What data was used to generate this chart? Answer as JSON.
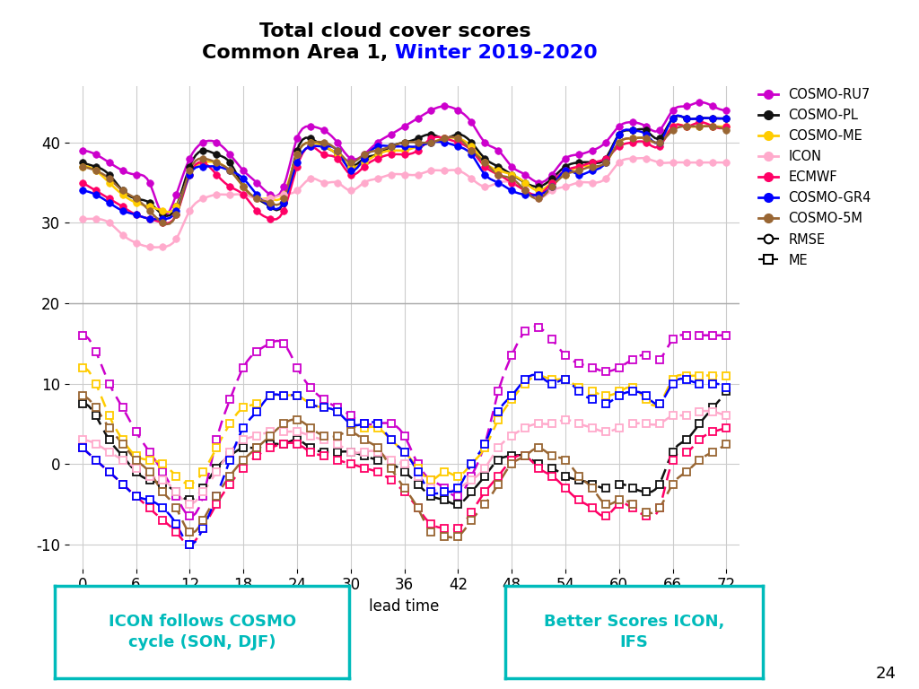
{
  "title_line1": "Total cloud cover scores",
  "title_line2_black": "Common Area 1, ",
  "title_line2_blue": "Winter 2019-2020",
  "xlabel": "lead time",
  "x_ticks": [
    0,
    6,
    12,
    18,
    24,
    30,
    36,
    42,
    48,
    54,
    60,
    66,
    72
  ],
  "background_color": "#ffffff",
  "colors": {
    "COSMO-RU7": "#cc00cc",
    "COSMO-PL": "#111111",
    "COSMO-ME": "#ffcc00",
    "ICON": "#ffaacc",
    "ECMWF": "#ff0066",
    "COSMO-GR4": "#0000ff",
    "COSMO-5M": "#996633"
  },
  "rmse": {
    "COSMO-RU7": [
      39.0,
      38.5,
      37.5,
      36.5,
      36.0,
      35.0,
      31.0,
      33.5,
      38.0,
      40.0,
      40.0,
      38.5,
      36.5,
      35.0,
      33.5,
      34.5,
      40.5,
      42.0,
      41.5,
      40.0,
      38.0,
      38.5,
      40.0,
      41.0,
      42.0,
      43.0,
      44.0,
      44.5,
      44.0,
      42.5,
      40.0,
      39.0,
      37.0,
      36.0,
      35.0,
      36.0,
      38.0,
      38.5,
      39.0,
      40.0,
      42.0,
      42.5,
      42.0,
      41.5,
      44.0,
      44.5,
      45.0,
      44.5,
      44.0
    ],
    "COSMO-PL": [
      37.5,
      37.0,
      36.0,
      34.0,
      33.0,
      32.5,
      31.0,
      32.0,
      37.0,
      39.0,
      38.5,
      37.5,
      34.5,
      33.0,
      32.0,
      32.5,
      39.0,
      40.5,
      39.5,
      38.5,
      37.0,
      38.0,
      38.5,
      39.5,
      40.0,
      40.5,
      41.0,
      40.5,
      41.0,
      40.0,
      38.0,
      37.0,
      36.0,
      35.0,
      34.5,
      35.5,
      37.0,
      37.5,
      37.5,
      38.0,
      41.0,
      41.5,
      41.5,
      40.5,
      43.0,
      43.0,
      43.0,
      43.0,
      43.0
    ],
    "COSMO-ME": [
      37.0,
      36.5,
      35.0,
      33.5,
      32.5,
      32.0,
      31.5,
      32.0,
      36.0,
      37.5,
      37.5,
      36.5,
      34.5,
      33.0,
      33.0,
      33.5,
      38.5,
      40.0,
      39.5,
      38.5,
      37.0,
      37.5,
      38.5,
      39.0,
      39.0,
      39.5,
      40.0,
      40.5,
      40.5,
      39.5,
      37.5,
      36.5,
      36.0,
      35.0,
      34.0,
      35.0,
      36.0,
      37.0,
      37.0,
      37.5,
      40.0,
      40.5,
      40.5,
      40.0,
      42.0,
      42.0,
      42.0,
      42.0,
      42.0
    ],
    "ICON": [
      30.5,
      30.5,
      30.0,
      28.5,
      27.5,
      27.0,
      27.0,
      28.0,
      31.5,
      33.0,
      33.5,
      33.5,
      33.5,
      33.0,
      33.0,
      33.5,
      34.0,
      35.5,
      35.0,
      35.0,
      34.0,
      35.0,
      35.5,
      36.0,
      36.0,
      36.0,
      36.5,
      36.5,
      36.5,
      35.5,
      34.5,
      35.0,
      35.0,
      34.0,
      33.0,
      34.0,
      34.5,
      35.0,
      35.0,
      35.5,
      37.5,
      38.0,
      38.0,
      37.5,
      37.5,
      37.5,
      37.5,
      37.5,
      37.5
    ],
    "ECMWF": [
      35.0,
      34.0,
      33.0,
      32.0,
      31.0,
      30.5,
      30.0,
      31.0,
      36.0,
      37.5,
      36.0,
      34.5,
      33.5,
      31.5,
      30.5,
      31.5,
      37.0,
      39.5,
      38.5,
      38.0,
      36.0,
      37.0,
      38.0,
      38.5,
      38.5,
      39.0,
      40.5,
      40.5,
      40.0,
      39.0,
      37.0,
      36.0,
      35.0,
      34.0,
      33.5,
      35.0,
      36.5,
      37.0,
      37.5,
      38.0,
      39.5,
      40.0,
      40.0,
      39.5,
      42.0,
      42.0,
      42.5,
      42.0,
      42.0
    ],
    "COSMO-GR4": [
      34.0,
      33.5,
      32.5,
      31.5,
      31.0,
      30.5,
      30.5,
      31.5,
      36.0,
      37.0,
      37.0,
      36.5,
      35.5,
      33.5,
      32.0,
      32.5,
      37.5,
      39.5,
      39.5,
      39.0,
      36.5,
      38.0,
      39.5,
      39.5,
      39.5,
      39.5,
      40.0,
      40.0,
      39.5,
      38.5,
      36.0,
      35.0,
      34.0,
      33.5,
      33.5,
      34.5,
      36.5,
      36.0,
      36.5,
      37.5,
      41.0,
      41.5,
      41.0,
      40.0,
      43.0,
      43.0,
      43.0,
      43.0,
      43.0
    ],
    "COSMO-5M": [
      37.0,
      36.5,
      35.5,
      34.0,
      33.0,
      31.5,
      30.0,
      31.0,
      36.5,
      38.0,
      37.5,
      36.5,
      34.5,
      33.0,
      32.5,
      33.0,
      38.5,
      40.0,
      40.0,
      39.0,
      37.5,
      38.5,
      39.0,
      39.5,
      40.0,
      40.0,
      40.0,
      40.5,
      40.5,
      39.0,
      37.5,
      36.0,
      35.5,
      34.0,
      33.0,
      34.5,
      36.0,
      36.5,
      37.0,
      37.5,
      40.0,
      40.5,
      40.5,
      40.0,
      41.5,
      42.0,
      42.0,
      42.0,
      41.5
    ]
  },
  "me": {
    "COSMO-RU7": [
      16.0,
      14.0,
      10.0,
      7.0,
      4.0,
      1.5,
      -1.0,
      -4.0,
      -6.5,
      -4.0,
      3.0,
      8.0,
      12.0,
      14.0,
      15.0,
      15.0,
      12.0,
      9.5,
      8.0,
      7.0,
      6.0,
      5.0,
      5.0,
      5.0,
      3.5,
      0.0,
      -2.0,
      -3.0,
      -4.0,
      -1.5,
      2.5,
      9.0,
      13.5,
      16.5,
      17.0,
      15.5,
      13.5,
      12.5,
      12.0,
      11.5,
      12.0,
      13.0,
      13.5,
      13.0,
      15.5,
      16.0,
      16.0,
      16.0,
      16.0
    ],
    "COSMO-PL": [
      7.5,
      6.0,
      3.0,
      1.0,
      -1.0,
      -2.0,
      -2.5,
      -3.5,
      -4.5,
      -3.0,
      -0.5,
      1.0,
      2.0,
      2.0,
      2.5,
      2.5,
      3.0,
      2.0,
      1.5,
      1.5,
      1.5,
      1.0,
      0.5,
      0.0,
      -1.0,
      -2.5,
      -4.0,
      -4.5,
      -5.0,
      -3.5,
      -1.5,
      0.5,
      1.0,
      1.0,
      0.0,
      -0.5,
      -1.5,
      -2.0,
      -2.5,
      -3.0,
      -2.5,
      -3.0,
      -3.5,
      -2.5,
      1.5,
      3.0,
      5.0,
      7.0,
      9.0
    ],
    "COSMO-ME": [
      12.0,
      10.0,
      6.0,
      3.0,
      1.0,
      0.5,
      0.0,
      -1.5,
      -2.5,
      -1.0,
      2.0,
      5.0,
      7.0,
      7.5,
      8.5,
      8.5,
      8.5,
      7.5,
      7.0,
      6.5,
      5.0,
      4.5,
      4.5,
      3.0,
      1.5,
      -0.5,
      -2.0,
      -1.0,
      -1.5,
      0.0,
      2.0,
      5.5,
      8.0,
      10.0,
      11.0,
      10.5,
      10.5,
      9.5,
      9.0,
      8.5,
      9.0,
      9.5,
      8.0,
      7.5,
      10.5,
      11.0,
      11.0,
      11.0,
      11.0
    ],
    "ICON": [
      3.0,
      2.5,
      1.5,
      0.5,
      -0.5,
      -1.5,
      -2.0,
      -3.5,
      -5.0,
      -3.5,
      -1.0,
      1.5,
      3.0,
      3.5,
      4.0,
      4.0,
      4.0,
      3.5,
      3.0,
      2.5,
      1.5,
      1.5,
      1.5,
      0.5,
      0.0,
      -1.5,
      -3.0,
      -3.5,
      -3.0,
      -2.0,
      -0.5,
      2.0,
      3.5,
      4.5,
      5.0,
      5.0,
      5.5,
      5.0,
      4.5,
      4.0,
      4.5,
      5.0,
      5.0,
      5.0,
      6.0,
      6.0,
      6.5,
      6.5,
      6.0
    ],
    "ECMWF": [
      2.0,
      0.5,
      -1.0,
      -2.5,
      -4.0,
      -5.5,
      -7.0,
      -8.5,
      -10.0,
      -8.0,
      -5.0,
      -2.5,
      -0.5,
      1.0,
      2.0,
      2.5,
      2.5,
      1.5,
      1.0,
      0.5,
      0.0,
      -0.5,
      -1.0,
      -2.0,
      -3.5,
      -5.5,
      -7.5,
      -8.0,
      -8.0,
      -6.0,
      -3.5,
      -1.5,
      0.5,
      1.0,
      -0.5,
      -1.5,
      -3.0,
      -4.5,
      -5.5,
      -6.5,
      -5.0,
      -5.5,
      -6.5,
      -5.5,
      0.5,
      1.5,
      3.0,
      4.0,
      4.5
    ],
    "COSMO-GR4": [
      2.0,
      0.5,
      -1.0,
      -2.5,
      -4.0,
      -4.5,
      -5.5,
      -7.5,
      -10.0,
      -8.0,
      -4.0,
      0.5,
      4.5,
      6.5,
      8.5,
      8.5,
      8.5,
      7.5,
      7.0,
      6.5,
      5.0,
      5.0,
      5.0,
      3.0,
      1.5,
      -1.0,
      -3.5,
      -3.5,
      -3.0,
      0.0,
      2.5,
      6.5,
      8.5,
      10.5,
      11.0,
      10.0,
      10.5,
      9.0,
      8.0,
      7.5,
      8.5,
      9.0,
      8.5,
      7.5,
      10.0,
      10.5,
      10.0,
      10.0,
      9.5
    ],
    "COSMO-5M": [
      8.5,
      7.0,
      4.5,
      2.5,
      0.5,
      -1.0,
      -3.5,
      -5.5,
      -8.5,
      -7.0,
      -4.0,
      -1.5,
      0.5,
      2.0,
      3.5,
      5.0,
      5.5,
      4.5,
      3.5,
      3.5,
      4.0,
      3.0,
      2.0,
      -0.5,
      -3.0,
      -5.5,
      -8.5,
      -9.0,
      -9.0,
      -7.0,
      -5.0,
      -2.5,
      0.0,
      1.0,
      2.0,
      1.0,
      0.5,
      -1.5,
      -3.0,
      -5.0,
      -4.5,
      -5.0,
      -6.0,
      -5.5,
      -2.5,
      -1.0,
      0.5,
      1.5,
      2.5
    ]
  },
  "annotation_left": "ICON follows COSMO\ncycle (SON, DJF)",
  "annotation_right": "Better Scores ICON,\nIFS",
  "slide_number": "24"
}
